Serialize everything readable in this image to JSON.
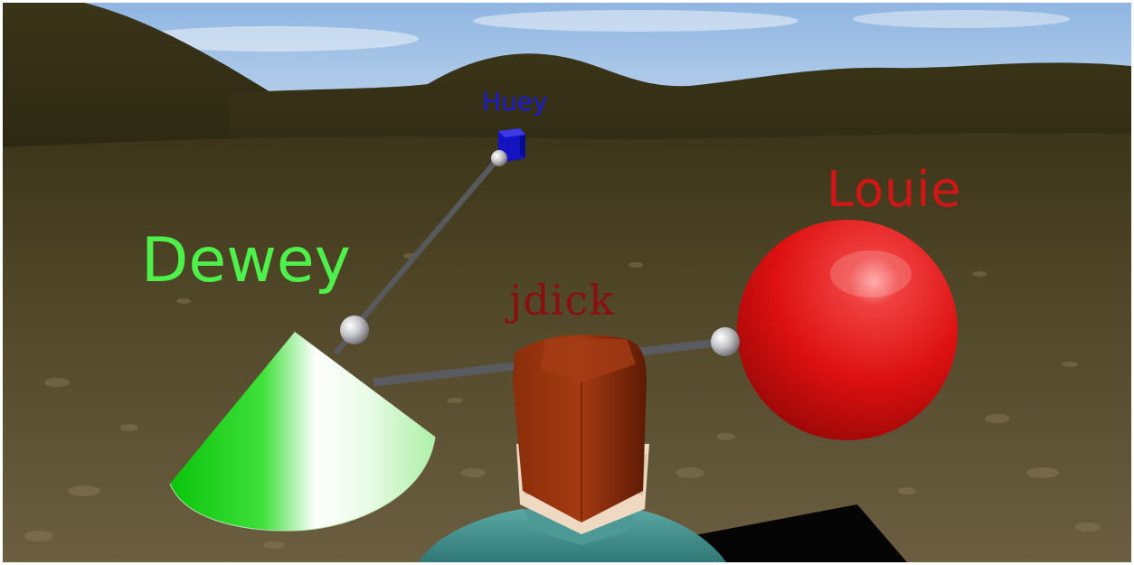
{
  "scene": {
    "labels": {
      "huey": "Huey",
      "dewey": "Dewey",
      "jdick": "jdick",
      "louie": "Louie"
    },
    "objects": {
      "huey": {
        "shape": "cube",
        "color": "#1a1ad6"
      },
      "dewey": {
        "shape": "cone",
        "color": "#2ee02a"
      },
      "louie": {
        "shape": "sphere",
        "color": "#dd1010"
      },
      "jdick": {
        "shape": "avatar",
        "hair_color": "#7a2608",
        "shirt_color": "#3e8e8a"
      }
    },
    "colors": {
      "sky": "#a9c9ea",
      "hills": "#3b3518",
      "ground": "#5a4e30",
      "connector": "#55565a",
      "joint": "#c8c8cc"
    }
  }
}
